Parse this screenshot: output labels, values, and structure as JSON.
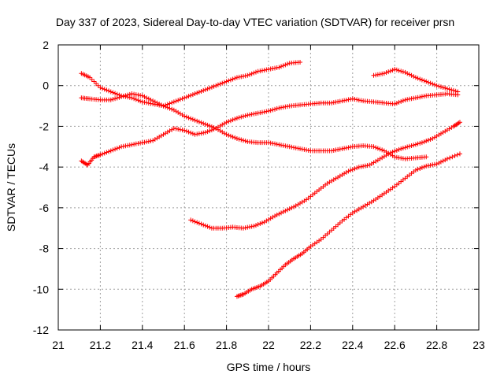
{
  "chart_data": {
    "type": "scatter",
    "title": "Day 337 of 2023, Sidereal Day-to-day VTEC variation (SDTVAR) for receiver prsn",
    "xlabel": "GPS time / hours",
    "ylabel": "SDTVAR / TECUs",
    "xlim": [
      21,
      23
    ],
    "ylim": [
      -12,
      2
    ],
    "xticks": [
      "21",
      "21.2",
      "21.4",
      "21.6",
      "21.8",
      "22",
      "22.2",
      "22.4",
      "22.6",
      "22.8",
      "23"
    ],
    "yticks": [
      "2",
      "0",
      "-2",
      "-4",
      "-6",
      "-8",
      "-10",
      "-12"
    ],
    "grid": true,
    "marker": "plus",
    "color": "#ff0000",
    "series": [
      {
        "name": "s1",
        "points": [
          [
            21.11,
            0.6
          ],
          [
            21.15,
            0.4
          ],
          [
            21.2,
            -0.1
          ],
          [
            21.25,
            -0.3
          ],
          [
            21.3,
            -0.5
          ],
          [
            21.35,
            -0.6
          ],
          [
            21.4,
            -0.8
          ],
          [
            21.45,
            -0.9
          ],
          [
            21.5,
            -1.0
          ],
          [
            21.55,
            -0.8
          ],
          [
            21.6,
            -0.6
          ],
          [
            21.65,
            -0.4
          ],
          [
            21.7,
            -0.2
          ],
          [
            21.75,
            0.0
          ],
          [
            21.8,
            0.2
          ],
          [
            21.85,
            0.4
          ],
          [
            21.9,
            0.5
          ],
          [
            21.95,
            0.7
          ],
          [
            22.0,
            0.8
          ],
          [
            22.05,
            0.9
          ],
          [
            22.1,
            1.1
          ],
          [
            22.15,
            1.15
          ]
        ]
      },
      {
        "name": "s2",
        "points": [
          [
            21.11,
            -0.6
          ],
          [
            21.15,
            -0.65
          ],
          [
            21.2,
            -0.7
          ],
          [
            21.25,
            -0.7
          ],
          [
            21.3,
            -0.55
          ],
          [
            21.35,
            -0.4
          ],
          [
            21.4,
            -0.5
          ],
          [
            21.45,
            -0.75
          ],
          [
            21.5,
            -1.0
          ],
          [
            21.55,
            -1.2
          ],
          [
            21.6,
            -1.5
          ],
          [
            21.65,
            -1.7
          ],
          [
            21.7,
            -1.9
          ],
          [
            21.75,
            -2.1
          ],
          [
            21.8,
            -2.4
          ],
          [
            21.85,
            -2.6
          ],
          [
            21.9,
            -2.75
          ],
          [
            21.95,
            -2.8
          ],
          [
            22.0,
            -2.8
          ],
          [
            22.05,
            -2.9
          ],
          [
            22.1,
            -3.0
          ],
          [
            22.15,
            -3.1
          ],
          [
            22.2,
            -3.2
          ],
          [
            22.25,
            -3.2
          ],
          [
            22.3,
            -3.2
          ],
          [
            22.35,
            -3.1
          ],
          [
            22.4,
            -3.0
          ],
          [
            22.45,
            -2.95
          ],
          [
            22.5,
            -3.0
          ],
          [
            22.55,
            -3.2
          ],
          [
            22.6,
            -3.5
          ],
          [
            22.65,
            -3.6
          ],
          [
            22.7,
            -3.55
          ],
          [
            22.75,
            -3.5
          ]
        ]
      },
      {
        "name": "s3",
        "points": [
          [
            21.11,
            -3.7
          ],
          [
            21.14,
            -3.9
          ],
          [
            21.17,
            -3.5
          ],
          [
            21.2,
            -3.4
          ],
          [
            21.25,
            -3.2
          ],
          [
            21.3,
            -3.0
          ],
          [
            21.35,
            -2.9
          ],
          [
            21.4,
            -2.8
          ],
          [
            21.45,
            -2.7
          ],
          [
            21.5,
            -2.4
          ],
          [
            21.55,
            -2.1
          ],
          [
            21.6,
            -2.2
          ],
          [
            21.65,
            -2.4
          ],
          [
            21.7,
            -2.3
          ],
          [
            21.75,
            -2.1
          ],
          [
            21.8,
            -1.8
          ],
          [
            21.85,
            -1.6
          ],
          [
            21.9,
            -1.45
          ],
          [
            21.95,
            -1.35
          ],
          [
            22.0,
            -1.25
          ],
          [
            22.05,
            -1.1
          ],
          [
            22.1,
            -1.0
          ],
          [
            22.15,
            -0.95
          ],
          [
            22.2,
            -0.9
          ],
          [
            22.25,
            -0.85
          ],
          [
            22.3,
            -0.85
          ],
          [
            22.35,
            -0.75
          ],
          [
            22.4,
            -0.65
          ],
          [
            22.45,
            -0.75
          ],
          [
            22.5,
            -0.8
          ],
          [
            22.55,
            -0.85
          ],
          [
            22.6,
            -0.9
          ],
          [
            22.65,
            -0.7
          ],
          [
            22.7,
            -0.6
          ],
          [
            22.75,
            -0.5
          ],
          [
            22.8,
            -0.45
          ],
          [
            22.85,
            -0.4
          ],
          [
            22.9,
            -0.45
          ]
        ]
      },
      {
        "name": "s4",
        "points": [
          [
            22.5,
            0.5
          ],
          [
            22.55,
            0.6
          ],
          [
            22.6,
            0.8
          ],
          [
            22.65,
            0.65
          ],
          [
            22.7,
            0.4
          ],
          [
            22.75,
            0.2
          ],
          [
            22.8,
            0.0
          ],
          [
            22.85,
            -0.15
          ],
          [
            22.9,
            -0.3
          ]
        ]
      },
      {
        "name": "s5",
        "points": [
          [
            21.63,
            -6.6
          ],
          [
            21.68,
            -6.8
          ],
          [
            21.73,
            -7.0
          ],
          [
            21.78,
            -7.0
          ],
          [
            21.83,
            -6.95
          ],
          [
            21.88,
            -7.0
          ],
          [
            21.93,
            -6.9
          ],
          [
            21.98,
            -6.7
          ],
          [
            22.03,
            -6.4
          ],
          [
            22.08,
            -6.15
          ],
          [
            22.13,
            -5.9
          ],
          [
            22.18,
            -5.6
          ],
          [
            22.23,
            -5.2
          ],
          [
            22.28,
            -4.8
          ],
          [
            22.33,
            -4.5
          ],
          [
            22.38,
            -4.2
          ],
          [
            22.43,
            -4.0
          ],
          [
            22.48,
            -3.9
          ],
          [
            22.53,
            -3.6
          ],
          [
            22.58,
            -3.3
          ],
          [
            22.63,
            -3.1
          ],
          [
            22.68,
            -2.95
          ],
          [
            22.73,
            -2.8
          ],
          [
            22.78,
            -2.6
          ],
          [
            22.83,
            -2.3
          ],
          [
            22.88,
            -2.0
          ],
          [
            22.91,
            -1.8
          ]
        ]
      },
      {
        "name": "s6",
        "points": [
          [
            21.85,
            -10.35
          ],
          [
            21.88,
            -10.25
          ],
          [
            21.92,
            -10.0
          ],
          [
            21.96,
            -9.85
          ],
          [
            22.0,
            -9.6
          ],
          [
            22.04,
            -9.2
          ],
          [
            22.08,
            -8.8
          ],
          [
            22.12,
            -8.5
          ],
          [
            22.16,
            -8.25
          ],
          [
            22.2,
            -7.9
          ],
          [
            22.25,
            -7.55
          ],
          [
            22.3,
            -7.1
          ],
          [
            22.35,
            -6.65
          ],
          [
            22.4,
            -6.25
          ],
          [
            22.45,
            -5.95
          ],
          [
            22.5,
            -5.65
          ],
          [
            22.55,
            -5.3
          ],
          [
            22.6,
            -4.95
          ],
          [
            22.65,
            -4.55
          ],
          [
            22.7,
            -4.15
          ],
          [
            22.75,
            -3.95
          ],
          [
            22.8,
            -3.85
          ],
          [
            22.85,
            -3.6
          ],
          [
            22.91,
            -3.35
          ]
        ]
      }
    ]
  }
}
